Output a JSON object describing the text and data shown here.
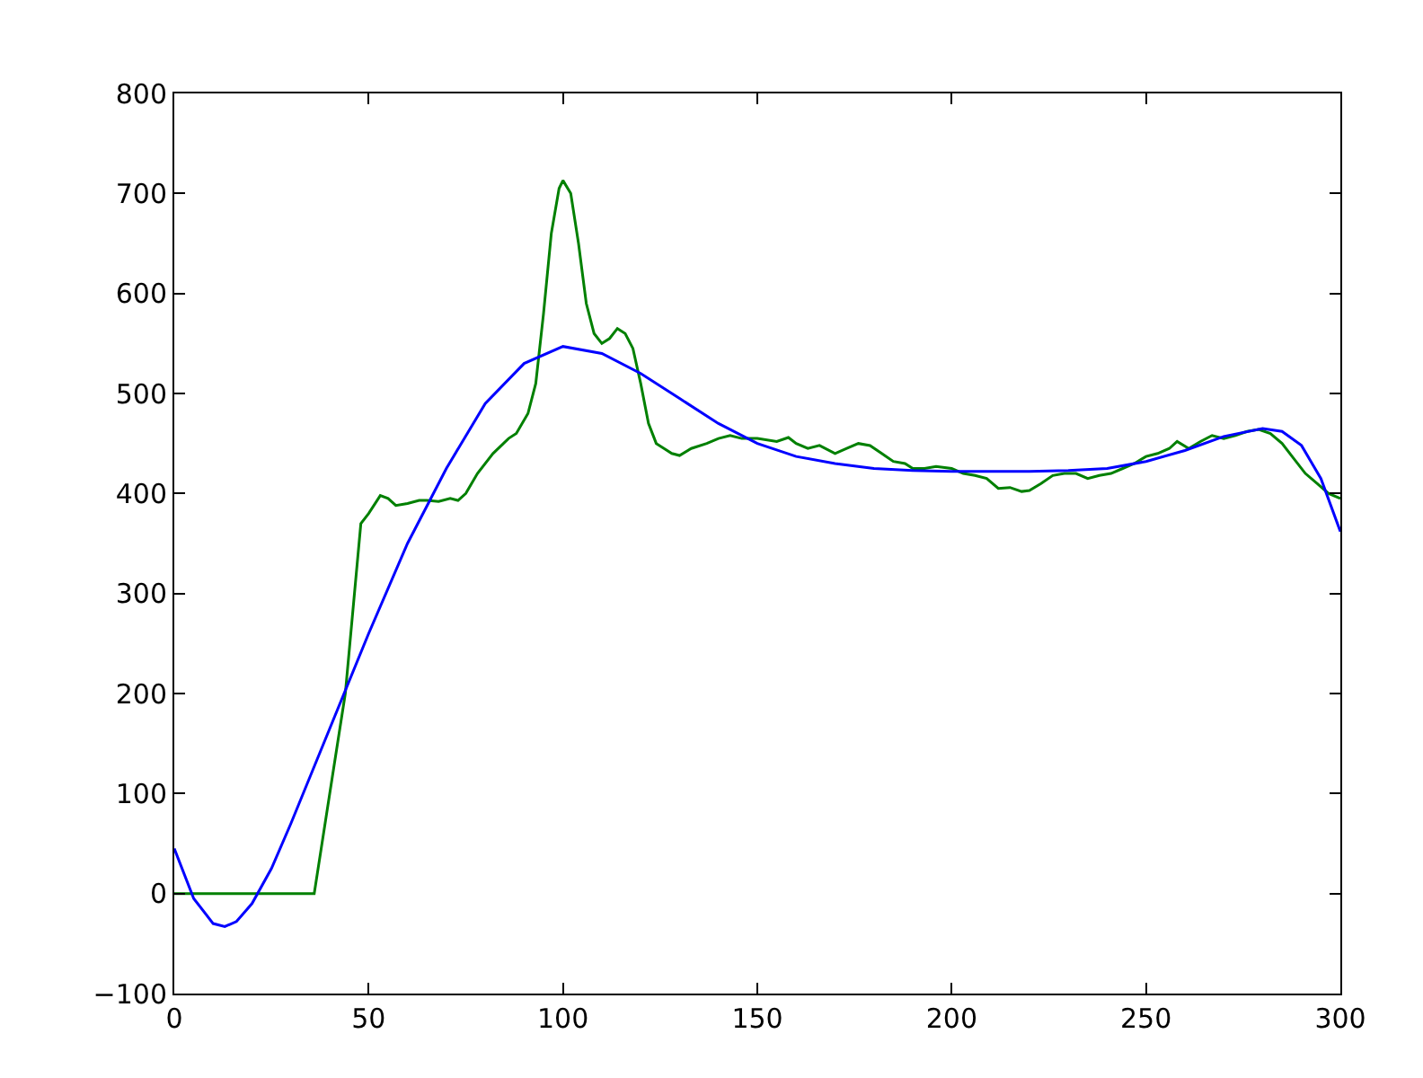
{
  "chart_data": {
    "type": "line",
    "xlim": [
      0,
      300
    ],
    "ylim": [
      -100,
      800
    ],
    "xticks": [
      0,
      50,
      100,
      150,
      200,
      250,
      300
    ],
    "yticks": [
      {
        "value": -100,
        "label": "−100"
      },
      0,
      100,
      200,
      300,
      400,
      500,
      600,
      700,
      800
    ],
    "marker": "none",
    "line_style": "solid",
    "series": [
      {
        "color": "#008000",
        "x": [
          0,
          10,
          20,
          30,
          36,
          40,
          44,
          48,
          50,
          53,
          55,
          57,
          60,
          63,
          65,
          68,
          71,
          73,
          75,
          78,
          82,
          86,
          88,
          91,
          93,
          95,
          97,
          99,
          100,
          102,
          104,
          106,
          108,
          110,
          112,
          114,
          116,
          118,
          120,
          122,
          124,
          126,
          128,
          130,
          133,
          137,
          140,
          143,
          146,
          150,
          155,
          158,
          160,
          163,
          166,
          170,
          173,
          176,
          179,
          182,
          185,
          188,
          190,
          193,
          196,
          200,
          203,
          206,
          209,
          212,
          215,
          218,
          220,
          223,
          226,
          229,
          232,
          235,
          238,
          241,
          244,
          247,
          250,
          253,
          256,
          258,
          261,
          264,
          267,
          270,
          273,
          276,
          279,
          282,
          285,
          288,
          291,
          294,
          297,
          300
        ],
        "values": [
          0,
          0,
          0,
          0,
          0,
          100,
          200,
          370,
          380,
          398,
          395,
          388,
          390,
          393,
          393,
          392,
          395,
          393,
          400,
          420,
          440,
          455,
          460,
          480,
          510,
          580,
          660,
          705,
          713,
          700,
          650,
          590,
          560,
          550,
          555,
          565,
          560,
          545,
          510,
          470,
          450,
          445,
          440,
          438,
          445,
          450,
          455,
          458,
          455,
          455,
          452,
          456,
          450,
          445,
          448,
          440,
          445,
          450,
          448,
          440,
          432,
          430,
          425,
          425,
          427,
          425,
          420,
          418,
          415,
          405,
          406,
          402,
          403,
          410,
          418,
          420,
          420,
          415,
          418,
          420,
          425,
          430,
          437,
          440,
          445,
          452,
          445,
          452,
          458,
          455,
          458,
          462,
          464,
          460,
          450,
          435,
          420,
          410,
          400,
          395
        ]
      },
      {
        "color": "#0000ff",
        "x": [
          0,
          5,
          10,
          13,
          16,
          20,
          25,
          30,
          40,
          50,
          60,
          70,
          80,
          90,
          100,
          110,
          120,
          130,
          140,
          150,
          160,
          170,
          180,
          190,
          200,
          210,
          220,
          230,
          240,
          250,
          260,
          270,
          280,
          285,
          290,
          295,
          300
        ],
        "values": [
          45,
          -5,
          -30,
          -33,
          -28,
          -10,
          25,
          70,
          165,
          260,
          350,
          425,
          490,
          530,
          547,
          540,
          520,
          495,
          470,
          450,
          437,
          430,
          425,
          423,
          422,
          422,
          422,
          423,
          425,
          432,
          443,
          457,
          465,
          462,
          448,
          415,
          362
        ]
      }
    ]
  }
}
